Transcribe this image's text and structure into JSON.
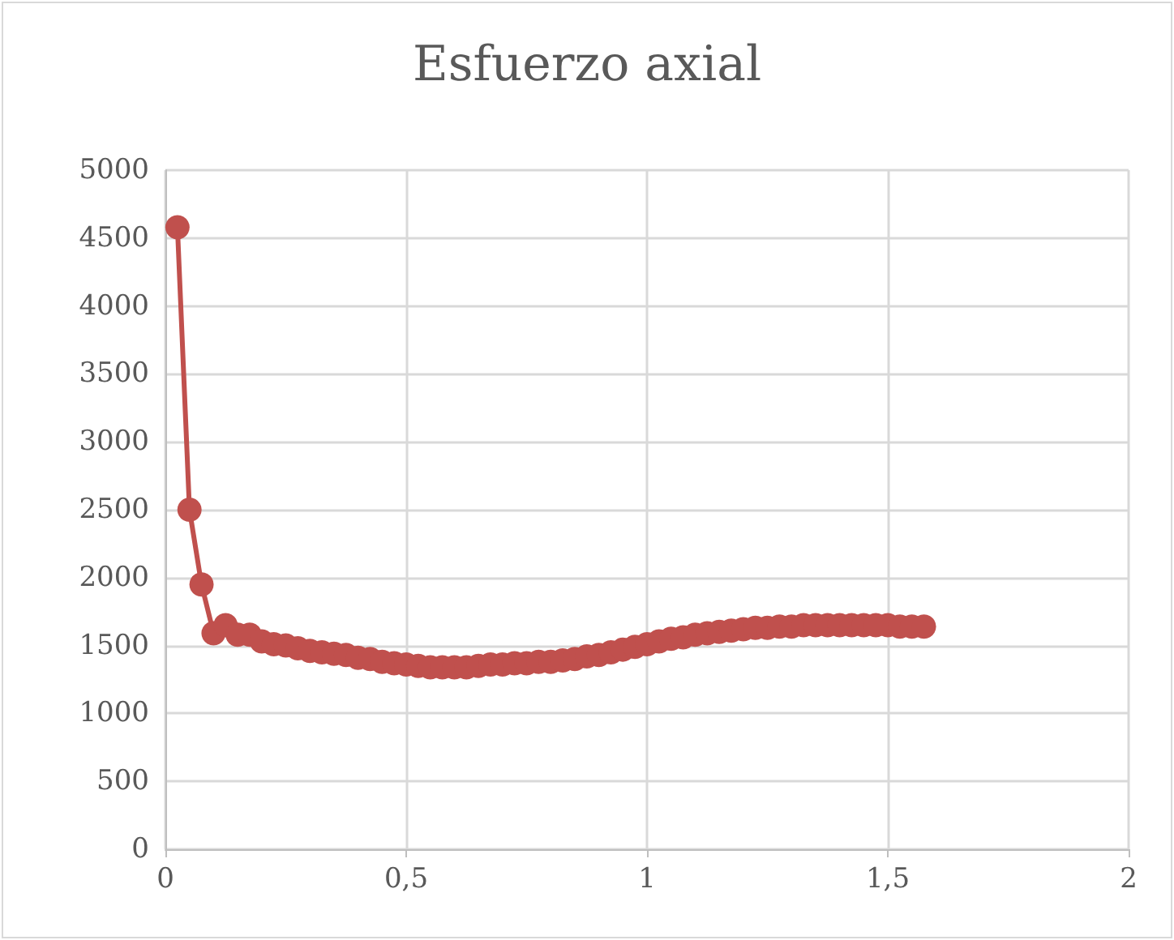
{
  "chart_data": {
    "type": "line",
    "title": "Esfuerzo axial",
    "x": [
      0.025,
      0.05,
      0.075,
      0.1,
      0.125,
      0.15,
      0.175,
      0.2,
      0.225,
      0.25,
      0.275,
      0.3,
      0.325,
      0.35,
      0.375,
      0.4,
      0.425,
      0.45,
      0.475,
      0.5,
      0.525,
      0.55,
      0.575,
      0.6,
      0.625,
      0.65,
      0.675,
      0.7,
      0.725,
      0.75,
      0.775,
      0.8,
      0.825,
      0.85,
      0.875,
      0.9,
      0.925,
      0.95,
      0.975,
      1.0,
      1.025,
      1.05,
      1.075,
      1.1,
      1.125,
      1.15,
      1.175,
      1.2,
      1.225,
      1.25,
      1.275,
      1.3,
      1.325,
      1.35,
      1.375,
      1.4,
      1.425,
      1.45,
      1.475,
      1.5,
      1.525,
      1.55,
      1.575
    ],
    "series": [
      {
        "color": "#c0504d",
        "values": [
          4580,
          2500,
          1950,
          1590,
          1650,
          1580,
          1580,
          1530,
          1510,
          1500,
          1480,
          1460,
          1450,
          1440,
          1430,
          1410,
          1400,
          1380,
          1370,
          1360,
          1350,
          1340,
          1340,
          1340,
          1340,
          1350,
          1360,
          1360,
          1370,
          1370,
          1380,
          1380,
          1390,
          1400,
          1420,
          1430,
          1450,
          1470,
          1490,
          1510,
          1530,
          1550,
          1560,
          1580,
          1590,
          1600,
          1610,
          1620,
          1630,
          1630,
          1640,
          1640,
          1650,
          1650,
          1650,
          1650,
          1650,
          1650,
          1650,
          1650,
          1640,
          1640,
          1640
        ]
      }
    ],
    "xlim": [
      0,
      2
    ],
    "xticks": [
      0,
      {
        "value": 0.5,
        "label": "0,5"
      },
      1,
      {
        "value": 1.5,
        "label": "1,5"
      },
      2
    ],
    "ylim": [
      0,
      5000
    ],
    "yticks": [
      0,
      500,
      1000,
      1500,
      2000,
      2500,
      3000,
      3500,
      4000,
      4500,
      5000
    ],
    "grid": true,
    "marker": "circle",
    "line_style": "solid"
  }
}
